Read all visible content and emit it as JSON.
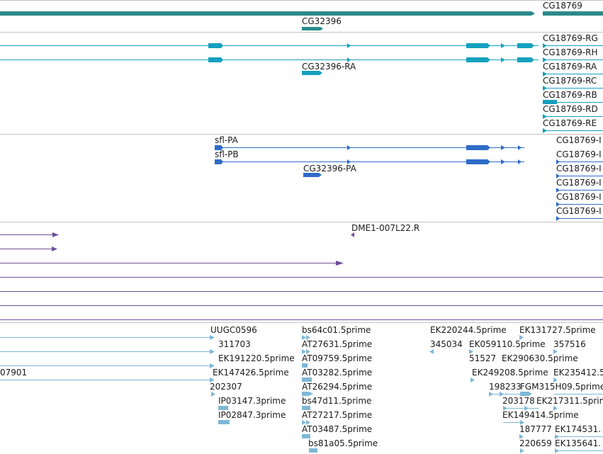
{
  "colors": {
    "gene": "#2a8a8c",
    "transcript": "#15a0bf",
    "protein": "#2e6cc8",
    "clone": "#6e4e9a",
    "est": "#7fb7d7",
    "divider": "#c2c2c2",
    "text": "#1a1a1a"
  },
  "genes": {
    "cg18769": "CG18769",
    "cg32396": "CG32396"
  },
  "transcripts": {
    "cg32396_ra": "CG32396-RA",
    "rg": "CG18769-RG",
    "rh": "CG18769-RH",
    "ra": "CG18769-RA",
    "rc": "CG18769-RC",
    "rb": "CG18769-RB",
    "rd": "CG18769-RD",
    "re": "CG18769-RE"
  },
  "proteins": {
    "sfl_pa": "sfl-PA",
    "sfl_pb": "sfl-PB",
    "cg32396_pa": "CG32396-PA",
    "cg18769_p1": "CG18769-I",
    "cg18769_p2": "CG18769-I",
    "cg18769_p3": "CG18769-I",
    "cg18769_p4": "CG18769-I",
    "cg18769_p5": "CG18769-I",
    "cg18769_p6": "CG18769-I"
  },
  "clones": {
    "dme1": "DME1-007L22.R"
  },
  "ests": {
    "c1": [
      "UUGC0596",
      "311703",
      "EK191220.5prime",
      "EK147426.5prime",
      "202307",
      "IP03147.3prime",
      "IP02847.3prime"
    ],
    "c2": [
      "bs64c01.5prime",
      "AT27631.5prime",
      "AT09759.5prime",
      "AT03282.5prime",
      "AT26294.5prime",
      "bs47d11.5prime",
      "AT27217.5prime",
      "AT03487.5prime",
      "bs81a05.5prime"
    ],
    "c3": [
      "EK220244.5prime",
      "345034",
      "EK059110.5prime",
      "51527",
      "EK249208.5prime",
      "198233",
      "FGM315H09.5prime",
      "203178",
      "EK217311.5prime",
      "EK149414.5prime",
      "187777",
      "220659"
    ],
    "c4": [
      "EK131727.5prime",
      "357516",
      "EK290630.5prime",
      "EK235412.5",
      "EK174531.",
      "EK135641."
    ],
    "left": "07901"
  }
}
